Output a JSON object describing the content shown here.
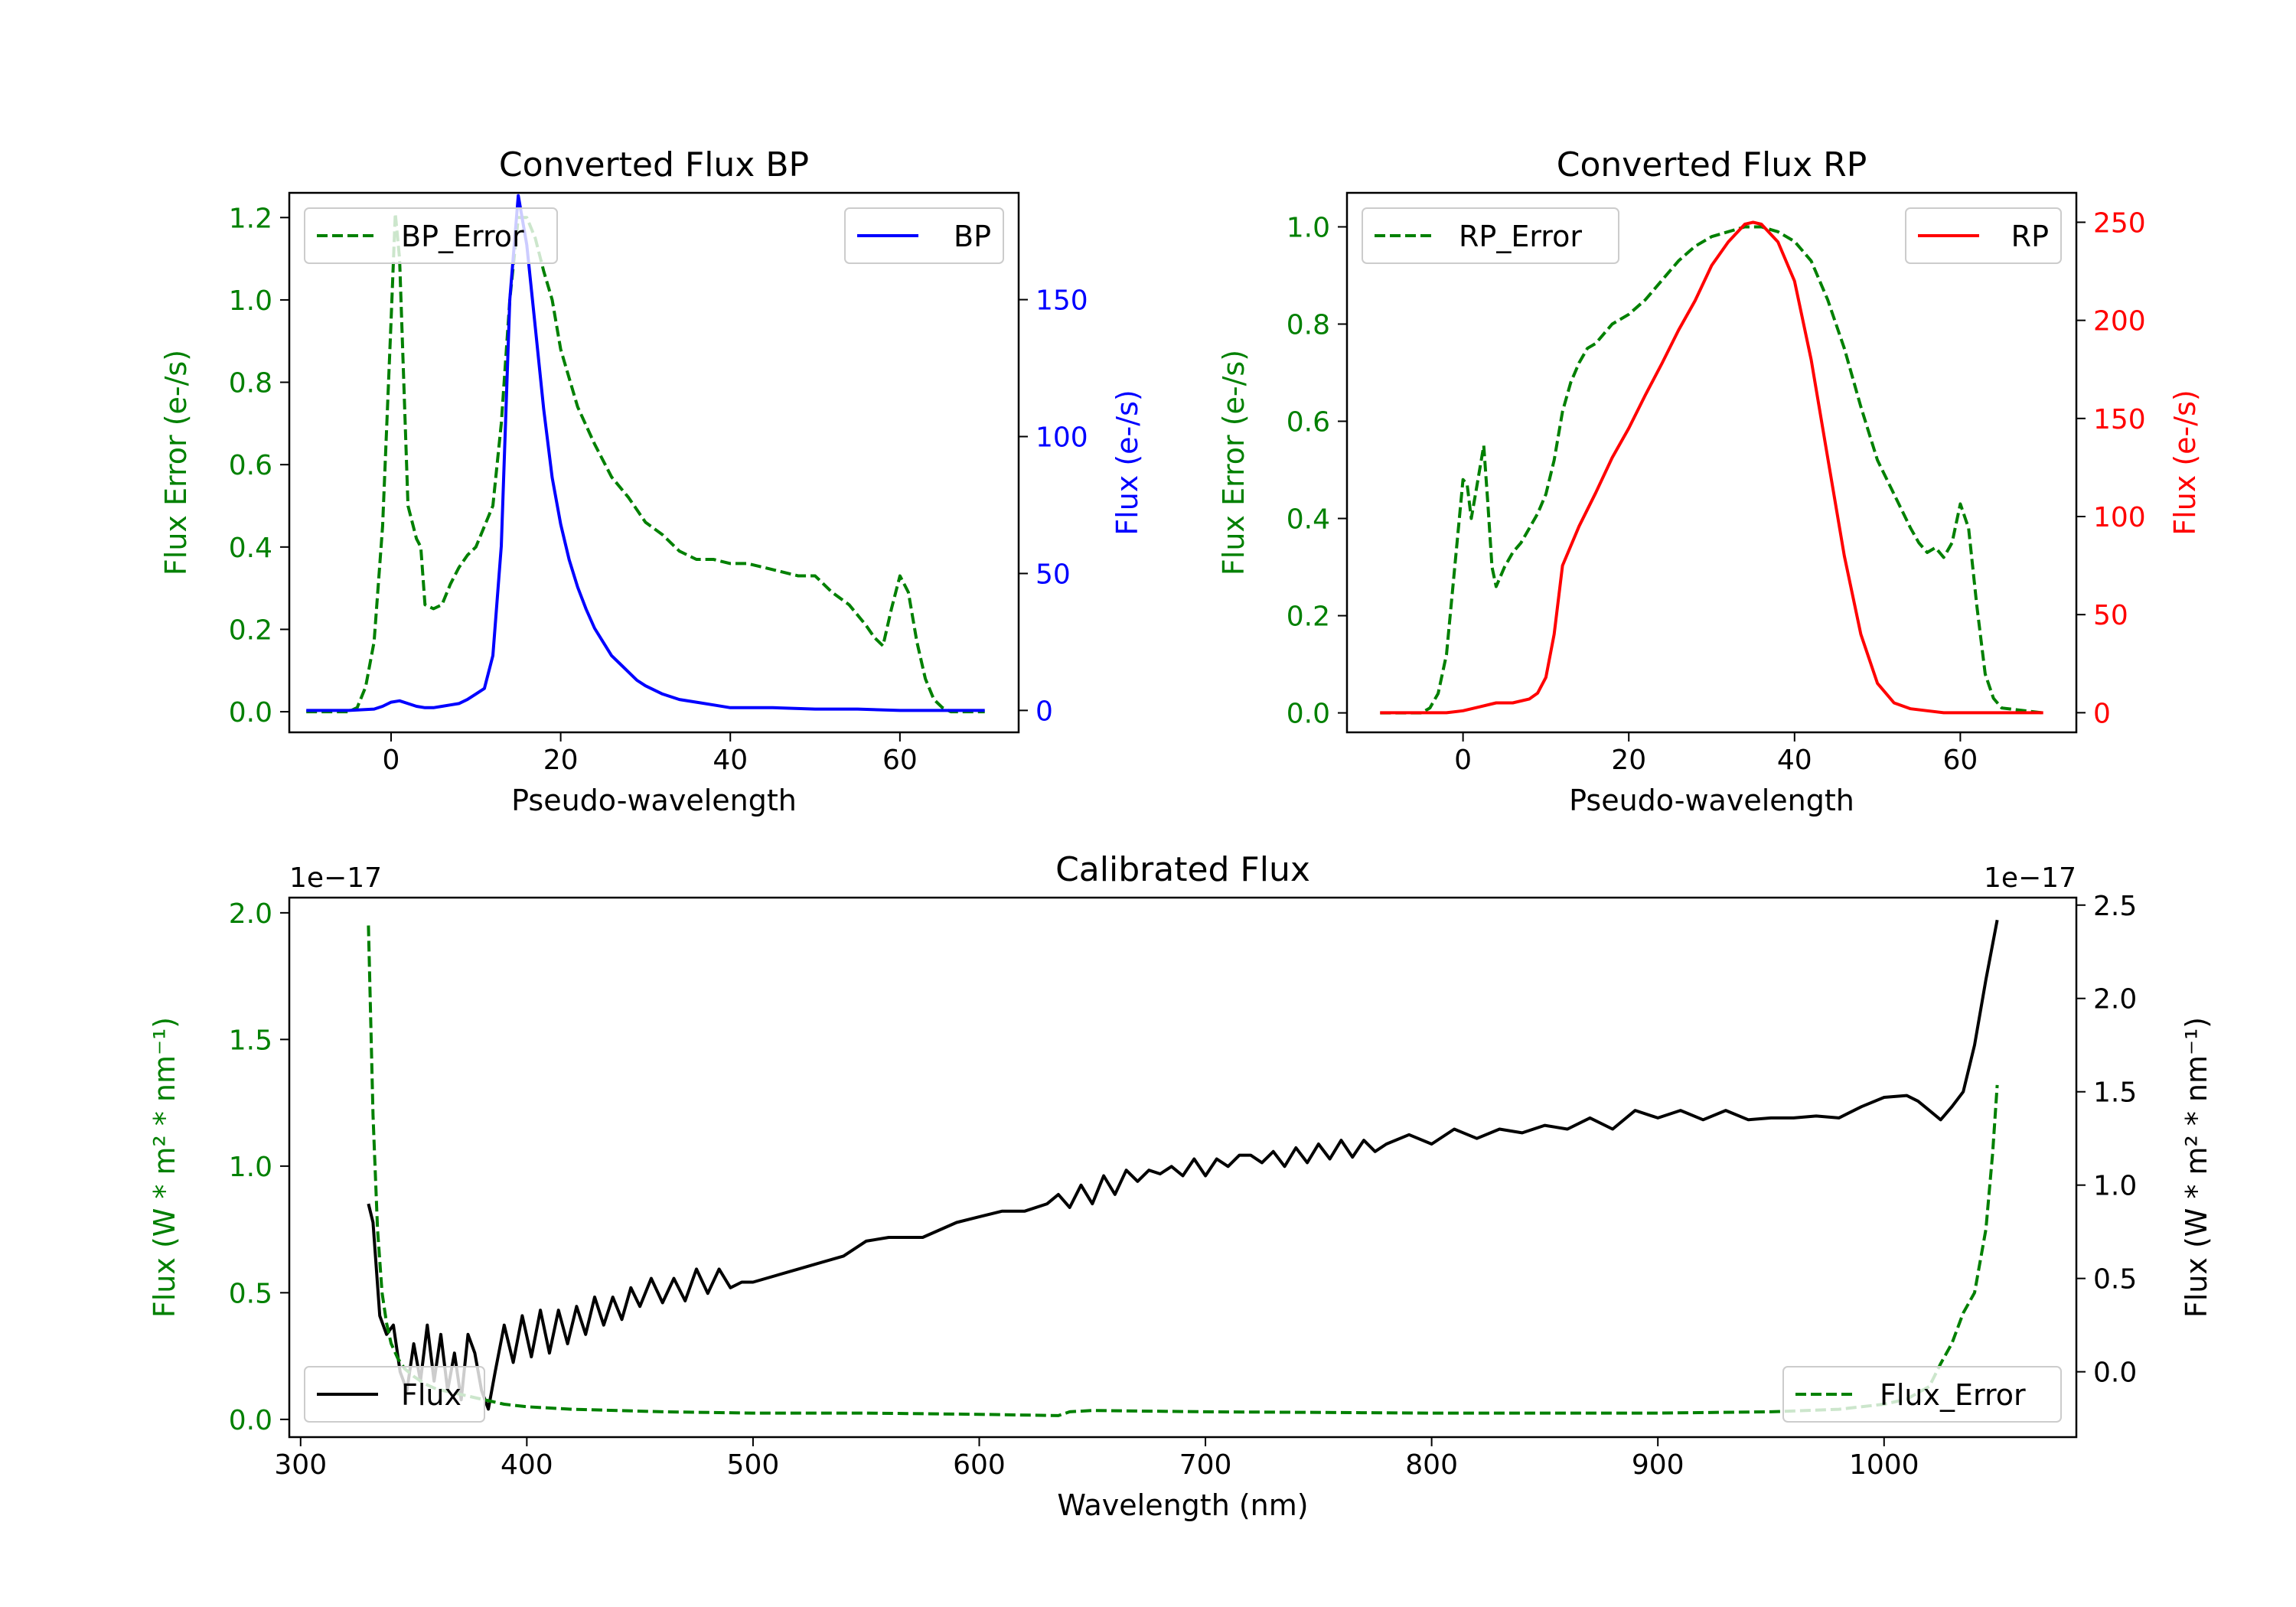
{
  "chart_data": [
    {
      "type": "line",
      "title": "Converted Flux BP",
      "xlabel": "Pseudo-wavelength",
      "xlim": [
        -12,
        74
      ],
      "xticks": [
        0,
        20,
        40,
        60
      ],
      "left_axis": {
        "label": "Flux Error (e-/s)",
        "color": "#008000",
        "ylim": [
          -0.05,
          1.26
        ],
        "ticks": [
          0.0,
          0.2,
          0.4,
          0.6,
          0.8,
          1.0,
          1.2
        ]
      },
      "right_axis": {
        "label": "Flux (e-/s)",
        "color": "#0000ff",
        "ylim": [
          -8,
          189
        ],
        "ticks": [
          0,
          50,
          100,
          150
        ]
      },
      "series": [
        {
          "name": "BP_Error",
          "axis": "left",
          "color": "#008000",
          "style": "dashed",
          "legend": "upper-left",
          "x": [
            -10,
            -5,
            -4,
            -3,
            -2,
            -1,
            0,
            0.5,
            1,
            1.5,
            2,
            3,
            3.5,
            4,
            5,
            6,
            7,
            8,
            9,
            10,
            11,
            12,
            13,
            14,
            15,
            16,
            17,
            18,
            19,
            20,
            22,
            24,
            26,
            28,
            30,
            32,
            34,
            36,
            38,
            40,
            42,
            44,
            46,
            48,
            50,
            52,
            54,
            56,
            57,
            58,
            59,
            60,
            61,
            62,
            63,
            64,
            65,
            66,
            67,
            70
          ],
          "y": [
            0,
            0,
            0.01,
            0.06,
            0.17,
            0.45,
            0.95,
            1.21,
            1.1,
            0.8,
            0.5,
            0.42,
            0.4,
            0.26,
            0.25,
            0.26,
            0.31,
            0.35,
            0.38,
            0.4,
            0.45,
            0.5,
            0.7,
            1.0,
            1.2,
            1.2,
            1.15,
            1.07,
            1.0,
            0.88,
            0.74,
            0.65,
            0.57,
            0.52,
            0.46,
            0.43,
            0.39,
            0.37,
            0.37,
            0.36,
            0.36,
            0.35,
            0.34,
            0.33,
            0.33,
            0.29,
            0.26,
            0.21,
            0.18,
            0.16,
            0.25,
            0.33,
            0.29,
            0.17,
            0.08,
            0.03,
            0.01,
            0,
            0,
            0
          ]
        },
        {
          "name": "BP",
          "axis": "right",
          "color": "#0000ff",
          "style": "solid",
          "legend": "upper-right",
          "x": [
            -10,
            -5,
            -2,
            -1,
            0,
            1,
            2,
            3,
            4,
            5,
            6,
            7,
            8,
            9,
            10,
            11,
            12,
            13,
            14,
            15,
            16,
            17,
            18,
            19,
            20,
            21,
            22,
            23,
            24,
            25,
            26,
            27,
            28,
            29,
            30,
            32,
            34,
            36,
            38,
            40,
            45,
            50,
            55,
            60,
            65,
            70
          ],
          "y": [
            0,
            0,
            0.5,
            1.5,
            3,
            3.5,
            2.5,
            1.5,
            1,
            1,
            1.5,
            2,
            2.5,
            4,
            6,
            8,
            20,
            60,
            150,
            188,
            170,
            140,
            110,
            85,
            68,
            55,
            45,
            37,
            30,
            25,
            20,
            17,
            14,
            11,
            9,
            6,
            4,
            3,
            2,
            1,
            1,
            0.5,
            0.5,
            0,
            0,
            0
          ]
        }
      ]
    },
    {
      "type": "line",
      "title": "Converted Flux RP",
      "xlabel": "Pseudo-wavelength",
      "xlim": [
        -14,
        74
      ],
      "xticks": [
        0,
        20,
        40,
        60
      ],
      "left_axis": {
        "label": "Flux Error (e-/s)",
        "color": "#008000",
        "ylim": [
          -0.04,
          1.07
        ],
        "ticks": [
          0.0,
          0.2,
          0.4,
          0.6,
          0.8,
          1.0
        ]
      },
      "right_axis": {
        "label": "Flux (e-/s)",
        "color": "#ff0000",
        "ylim": [
          -10,
          265
        ],
        "ticks": [
          0,
          50,
          100,
          150,
          200,
          250
        ]
      },
      "series": [
        {
          "name": "RP_Error",
          "axis": "left",
          "color": "#008000",
          "style": "dashed",
          "legend": "upper-left",
          "x": [
            -10,
            -5,
            -4,
            -3,
            -2,
            -1,
            0,
            0.5,
            1,
            1.5,
            2,
            2.5,
            3,
            3.5,
            4,
            5,
            6,
            7,
            8,
            9,
            10,
            11,
            12,
            13,
            14,
            15,
            16,
            17,
            18,
            20,
            22,
            24,
            26,
            28,
            30,
            32,
            34,
            36,
            38,
            40,
            42,
            44,
            46,
            48,
            50,
            52,
            54,
            55,
            56,
            57,
            58,
            59,
            60,
            61,
            62,
            63,
            64,
            65,
            70
          ],
          "y": [
            0,
            0,
            0.01,
            0.04,
            0.12,
            0.3,
            0.48,
            0.47,
            0.4,
            0.45,
            0.5,
            0.55,
            0.43,
            0.3,
            0.26,
            0.3,
            0.33,
            0.35,
            0.38,
            0.41,
            0.45,
            0.52,
            0.62,
            0.68,
            0.72,
            0.75,
            0.76,
            0.78,
            0.8,
            0.82,
            0.85,
            0.89,
            0.93,
            0.96,
            0.98,
            0.99,
            1.0,
            1.0,
            0.99,
            0.97,
            0.93,
            0.85,
            0.75,
            0.63,
            0.52,
            0.45,
            0.38,
            0.35,
            0.33,
            0.34,
            0.32,
            0.35,
            0.43,
            0.38,
            0.22,
            0.08,
            0.03,
            0.01,
            0
          ]
        },
        {
          "name": "RP",
          "axis": "right",
          "color": "#ff0000",
          "style": "solid",
          "legend": "upper-right",
          "x": [
            -10,
            -5,
            -2,
            0,
            2,
            4,
            6,
            8,
            9,
            10,
            11,
            12,
            13,
            14,
            16,
            18,
            20,
            22,
            24,
            26,
            28,
            30,
            32,
            34,
            35,
            36,
            38,
            40,
            42,
            44,
            46,
            48,
            50,
            52,
            54,
            56,
            58,
            60,
            65,
            70
          ],
          "y": [
            0,
            0,
            0,
            1,
            3,
            5,
            5,
            7,
            10,
            18,
            40,
            75,
            85,
            95,
            112,
            130,
            145,
            162,
            178,
            195,
            210,
            228,
            240,
            249,
            250,
            249,
            240,
            220,
            180,
            130,
            80,
            40,
            15,
            5,
            2,
            1,
            0,
            0,
            0,
            0
          ]
        }
      ]
    },
    {
      "type": "line",
      "title": "Calibrated Flux",
      "xlabel": "Wavelength (nm)",
      "xlim": [
        295,
        1085
      ],
      "xticks": [
        300,
        400,
        500,
        600,
        700,
        800,
        900,
        1000
      ],
      "left_axis": {
        "label": "Flux (W * m² * nm⁻¹)",
        "color": "#008000",
        "multiplier": "1e−17",
        "ylim": [
          -0.07,
          2.06
        ],
        "ticks": [
          0.0,
          0.5,
          1.0,
          1.5,
          2.0
        ]
      },
      "right_axis": {
        "label": "Flux (W * m² * nm⁻¹)",
        "color": "#000000",
        "multiplier": "1e−17",
        "ylim": [
          -0.35,
          2.54
        ],
        "ticks": [
          0.0,
          0.5,
          1.0,
          1.5,
          2.0,
          2.5
        ]
      },
      "series": [
        {
          "name": "Flux",
          "axis": "right",
          "color": "#000000",
          "style": "solid",
          "legend": "lower-left",
          "x": [
            330,
            332,
            335,
            338,
            341,
            344,
            347,
            350,
            353,
            356,
            359,
            362,
            365,
            368,
            371,
            374,
            377,
            380,
            383,
            386,
            390,
            394,
            398,
            402,
            406,
            410,
            414,
            418,
            422,
            426,
            430,
            434,
            438,
            442,
            446,
            450,
            455,
            460,
            465,
            470,
            475,
            480,
            485,
            490,
            495,
            500,
            520,
            540,
            550,
            560,
            575,
            590,
            600,
            610,
            620,
            630,
            635,
            640,
            645,
            650,
            655,
            660,
            665,
            670,
            675,
            680,
            685,
            690,
            695,
            700,
            705,
            710,
            715,
            720,
            725,
            730,
            735,
            740,
            745,
            750,
            755,
            760,
            765,
            770,
            775,
            780,
            790,
            800,
            810,
            820,
            830,
            840,
            850,
            860,
            870,
            880,
            890,
            900,
            910,
            920,
            930,
            940,
            950,
            960,
            970,
            980,
            990,
            1000,
            1010,
            1015,
            1020,
            1025,
            1030,
            1035,
            1040,
            1045,
            1050
          ],
          "y": [
            0.9,
            0.8,
            0.3,
            0.2,
            0.25,
            0.0,
            -0.1,
            0.15,
            -0.05,
            0.25,
            -0.05,
            0.2,
            -0.1,
            0.1,
            -0.15,
            0.2,
            0.1,
            -0.1,
            -0.2,
            0.0,
            0.25,
            0.05,
            0.3,
            0.08,
            0.33,
            0.1,
            0.33,
            0.15,
            0.35,
            0.2,
            0.4,
            0.25,
            0.4,
            0.28,
            0.45,
            0.35,
            0.5,
            0.37,
            0.5,
            0.38,
            0.55,
            0.42,
            0.55,
            0.45,
            0.48,
            0.48,
            0.55,
            0.62,
            0.7,
            0.72,
            0.72,
            0.8,
            0.83,
            0.86,
            0.86,
            0.9,
            0.95,
            0.88,
            1.0,
            0.9,
            1.05,
            0.95,
            1.08,
            1.02,
            1.08,
            1.06,
            1.1,
            1.05,
            1.14,
            1.05,
            1.14,
            1.1,
            1.16,
            1.16,
            1.12,
            1.18,
            1.1,
            1.2,
            1.12,
            1.22,
            1.14,
            1.24,
            1.15,
            1.24,
            1.18,
            1.22,
            1.27,
            1.22,
            1.3,
            1.25,
            1.3,
            1.28,
            1.32,
            1.3,
            1.36,
            1.3,
            1.4,
            1.36,
            1.4,
            1.35,
            1.4,
            1.35,
            1.36,
            1.36,
            1.37,
            1.36,
            1.42,
            1.47,
            1.48,
            1.45,
            1.4,
            1.35,
            1.42,
            1.5,
            1.75,
            2.1,
            2.42
          ]
        },
        {
          "name": "Flux_Error",
          "axis": "left",
          "color": "#008000",
          "style": "dashed",
          "legend": "lower-right",
          "x": [
            330,
            332,
            334,
            336,
            338,
            340,
            343,
            346,
            350,
            355,
            360,
            370,
            380,
            390,
            400,
            420,
            440,
            460,
            500,
            550,
            600,
            635,
            640,
            650,
            700,
            800,
            900,
            950,
            980,
            1000,
            1010,
            1020,
            1025,
            1030,
            1035,
            1040,
            1045,
            1048,
            1050
          ],
          "y": [
            1.95,
            1.2,
            0.75,
            0.5,
            0.38,
            0.3,
            0.24,
            0.2,
            0.17,
            0.14,
            0.12,
            0.1,
            0.08,
            0.06,
            0.05,
            0.04,
            0.035,
            0.03,
            0.025,
            0.025,
            0.02,
            0.015,
            0.03,
            0.035,
            0.03,
            0.025,
            0.025,
            0.03,
            0.04,
            0.06,
            0.08,
            0.13,
            0.22,
            0.3,
            0.42,
            0.5,
            0.75,
            1.05,
            1.32
          ]
        }
      ]
    }
  ]
}
